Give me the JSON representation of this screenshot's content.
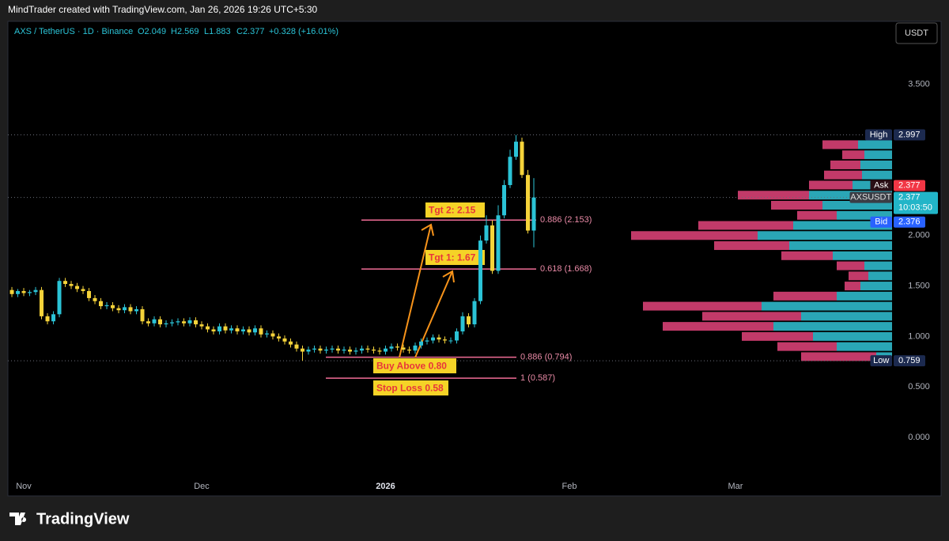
{
  "attribution": "MindTrader created with TradingView.com, Jan 26, 2026 19:26 UTC+5:30",
  "symbol_legend": "AXS / TetherUS · 1D · Binance",
  "ohlc_labels": [
    "O2.049",
    "H2.569",
    "L1.883",
    "C2.377",
    "+0.328 (+16.01%)"
  ],
  "currency_button": "USDT",
  "brand": "TradingView",
  "chart_data": {
    "type": "candlestick",
    "up_color": "#2bc3d6",
    "down_color": "#f5d33a",
    "open": [
      1.46,
      1.42,
      1.45,
      1.43,
      1.44,
      1.46,
      1.2,
      1.15,
      1.22,
      1.55,
      1.52,
      1.5,
      1.47,
      1.45,
      1.38,
      1.35,
      1.3,
      1.31,
      1.28,
      1.26,
      1.29,
      1.25,
      1.27,
      1.15,
      1.13,
      1.17,
      1.12,
      1.13,
      1.14,
      1.15,
      1.13,
      1.16,
      1.12,
      1.1,
      1.07,
      1.05,
      1.1,
      1.06,
      1.08,
      1.05,
      1.07,
      1.04,
      1.08,
      1.02,
      1.03,
      1.0,
      0.98,
      0.95,
      0.92,
      0.88,
      0.85,
      0.87,
      0.88,
      0.86,
      0.87,
      0.88,
      0.86,
      0.87,
      0.85,
      0.86,
      0.88,
      0.87,
      0.86,
      0.85,
      0.88,
      0.9,
      0.89,
      0.87,
      0.86,
      0.91,
      0.95,
      0.96,
      0.99,
      0.97,
      0.96,
      0.96,
      1.05,
      1.2,
      1.12,
      1.35,
      1.95,
      2.1,
      1.65,
      2.2,
      2.5,
      2.78,
      2.93,
      2.6,
      2.049
    ],
    "high": [
      1.49,
      1.47,
      1.48,
      1.46,
      1.49,
      1.49,
      1.23,
      1.25,
      1.58,
      1.58,
      1.55,
      1.53,
      1.5,
      1.48,
      1.41,
      1.38,
      1.34,
      1.34,
      1.31,
      1.32,
      1.32,
      1.3,
      1.3,
      1.18,
      1.2,
      1.2,
      1.16,
      1.17,
      1.18,
      1.18,
      1.19,
      1.19,
      1.15,
      1.13,
      1.1,
      1.13,
      1.13,
      1.11,
      1.11,
      1.1,
      1.1,
      1.11,
      1.11,
      1.06,
      1.06,
      1.03,
      1.01,
      0.98,
      0.95,
      0.91,
      0.9,
      0.91,
      0.91,
      0.9,
      0.91,
      0.91,
      0.9,
      0.9,
      0.89,
      0.91,
      0.91,
      0.9,
      0.89,
      0.91,
      0.93,
      0.93,
      0.92,
      0.9,
      0.94,
      0.98,
      0.99,
      1.02,
      1.02,
      1.0,
      0.99,
      1.08,
      1.24,
      1.23,
      1.38,
      2.0,
      2.2,
      2.15,
      2.3,
      2.55,
      2.85,
      2.997,
      2.97,
      2.65,
      2.569
    ],
    "low": [
      1.39,
      1.39,
      1.4,
      1.4,
      1.41,
      1.17,
      1.12,
      1.12,
      1.19,
      1.49,
      1.47,
      1.44,
      1.42,
      1.35,
      1.32,
      1.27,
      1.27,
      1.25,
      1.23,
      1.23,
      1.22,
      1.22,
      1.12,
      1.1,
      1.1,
      1.09,
      1.09,
      1.1,
      1.11,
      1.1,
      1.1,
      1.09,
      1.07,
      1.04,
      1.02,
      1.02,
      1.03,
      1.03,
      1.02,
      1.02,
      1.01,
      1.01,
      0.99,
      0.99,
      0.97,
      0.95,
      0.92,
      0.89,
      0.85,
      0.759,
      0.82,
      0.84,
      0.83,
      0.83,
      0.84,
      0.83,
      0.83,
      0.82,
      0.82,
      0.83,
      0.84,
      0.83,
      0.82,
      0.82,
      0.85,
      0.86,
      0.84,
      0.83,
      0.83,
      0.88,
      0.92,
      0.93,
      0.94,
      0.93,
      0.93,
      0.93,
      1.02,
      1.09,
      1.09,
      1.32,
      1.92,
      1.62,
      1.62,
      2.17,
      2.47,
      2.75,
      2.57,
      2.02,
      1.883
    ],
    "close": [
      1.42,
      1.45,
      1.43,
      1.44,
      1.46,
      1.2,
      1.15,
      1.22,
      1.55,
      1.52,
      1.5,
      1.47,
      1.45,
      1.38,
      1.35,
      1.3,
      1.31,
      1.28,
      1.26,
      1.29,
      1.25,
      1.27,
      1.15,
      1.13,
      1.17,
      1.12,
      1.13,
      1.14,
      1.15,
      1.13,
      1.16,
      1.12,
      1.1,
      1.07,
      1.05,
      1.1,
      1.06,
      1.08,
      1.05,
      1.07,
      1.04,
      1.08,
      1.02,
      1.03,
      1.0,
      0.98,
      0.95,
      0.92,
      0.88,
      0.85,
      0.87,
      0.88,
      0.86,
      0.87,
      0.88,
      0.86,
      0.87,
      0.85,
      0.86,
      0.88,
      0.87,
      0.86,
      0.85,
      0.88,
      0.9,
      0.89,
      0.87,
      0.86,
      0.91,
      0.95,
      0.96,
      0.99,
      0.97,
      0.96,
      0.96,
      1.05,
      1.2,
      1.12,
      1.35,
      1.95,
      2.1,
      1.65,
      2.2,
      2.5,
      2.78,
      2.93,
      2.6,
      2.049,
      2.377
    ],
    "xlim": [
      -0.67,
      148.67
    ],
    "xticks": [
      {
        "value": 2,
        "label": "Nov"
      },
      {
        "value": 32,
        "label": "Dec"
      },
      {
        "value": 63,
        "label": "2026"
      },
      {
        "value": 94,
        "label": "Feb"
      },
      {
        "value": 122,
        "label": "Mar"
      }
    ],
    "ylim": [
      -0.58,
      4.122
    ],
    "yticks": [
      {
        "value": 3.5,
        "label": "3.500"
      },
      {
        "value": 2,
        "label": "2.000"
      },
      {
        "value": 1.5,
        "label": "1.500"
      },
      {
        "value": 1,
        "label": "1.000"
      },
      {
        "value": 0.5,
        "label": "0.500"
      },
      {
        "value": 0,
        "label": "0.000"
      }
    ],
    "grid": false,
    "fib_levels": [
      {
        "label": "0.886 (2.153)",
        "value": 2.153
      },
      {
        "label": "0.618 (1.668)",
        "value": 1.668
      },
      {
        "label": "0.886 (0.794)",
        "value": 0.794
      },
      {
        "label": "1 (0.587)",
        "value": 0.587
      }
    ],
    "annotations": [
      "Tgt 2: 2.15",
      "Tgt 1: 1.67",
      "Buy Above 0.80",
      "Stop Loss 0.58"
    ],
    "price_tags": [
      {
        "label": "High",
        "value": 2.997
      },
      {
        "label": "Ask",
        "value": 2.377
      },
      {
        "label": "AXSUSDT",
        "value": 2.377,
        "countdown": "10:03:50"
      },
      {
        "label": "Bid",
        "value": 2.376
      },
      {
        "label": "Low",
        "value": 0.759
      }
    ],
    "volume_profile": {
      "buy_color": "#2aa6b6",
      "sell_color": "#c23a69",
      "prices": [
        2.9,
        2.8,
        2.7,
        2.6,
        2.5,
        2.4,
        2.3,
        2.2,
        2.1,
        2.0,
        1.9,
        1.8,
        1.7,
        1.6,
        1.5,
        1.4,
        1.3,
        1.2,
        1.1,
        1.0,
        0.9,
        0.8
      ],
      "buy": [
        43,
        35,
        40,
        38,
        50,
        105,
        88,
        70,
        125,
        170,
        130,
        75,
        35,
        30,
        40,
        70,
        165,
        115,
        150,
        100,
        70,
        20
      ],
      "sell": [
        45,
        28,
        38,
        48,
        55,
        90,
        65,
        50,
        120,
        160,
        95,
        65,
        35,
        25,
        20,
        80,
        150,
        125,
        140,
        90,
        75,
        95
      ]
    }
  }
}
